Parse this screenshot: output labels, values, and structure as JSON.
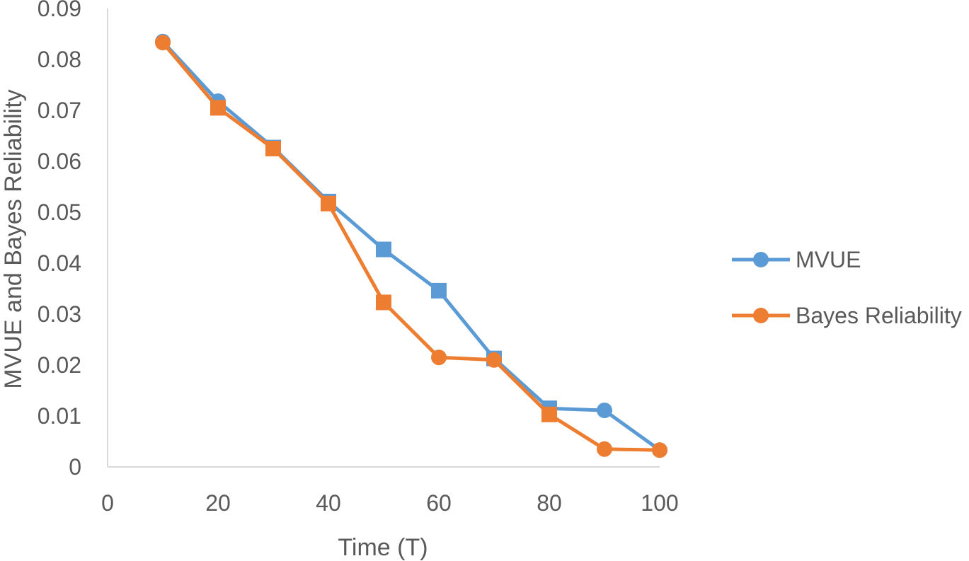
{
  "chart_data": {
    "type": "line",
    "title": "",
    "xlabel": "Time (T)",
    "ylabel": "MVUE and Bayes Reliability",
    "xlim": [
      0,
      100
    ],
    "ylim": [
      0,
      0.09
    ],
    "x_ticks": [
      0,
      20,
      40,
      60,
      80,
      100
    ],
    "y_ticks": [
      0,
      0.01,
      0.02,
      0.03,
      0.04,
      0.05,
      0.06,
      0.07,
      0.08,
      0.09
    ],
    "x_tick_labels": [
      "0",
      "20",
      "40",
      "60",
      "80",
      "100"
    ],
    "y_tick_labels": [
      "0",
      "0.01",
      "0.02",
      "0.03",
      "0.04",
      "0.05",
      "0.06",
      "0.07",
      "0.08",
      "0.09"
    ],
    "grid": false,
    "legend_position": "right",
    "x": [
      10,
      20,
      30,
      40,
      50,
      60,
      70,
      80,
      90,
      100
    ],
    "series": [
      {
        "name": "MVUE",
        "color": "#5B9BD5",
        "values": [
          0.0835,
          0.0718,
          0.0627,
          0.0521,
          0.0427,
          0.0346,
          0.0213,
          0.0115,
          0.0111,
          0.0033
        ],
        "markers": [
          "circle",
          "circle",
          "square",
          "square",
          "square",
          "square",
          "square",
          "square",
          "circle",
          "circle"
        ]
      },
      {
        "name": "Bayes Reliability",
        "color": "#ED7D31",
        "values": [
          0.0833,
          0.0705,
          0.0625,
          0.0517,
          0.0323,
          0.0215,
          0.021,
          0.0103,
          0.0035,
          0.0033
        ],
        "markers": [
          "circle",
          "square",
          "square",
          "square",
          "square",
          "circle",
          "circle",
          "square",
          "circle",
          "circle"
        ]
      }
    ]
  }
}
